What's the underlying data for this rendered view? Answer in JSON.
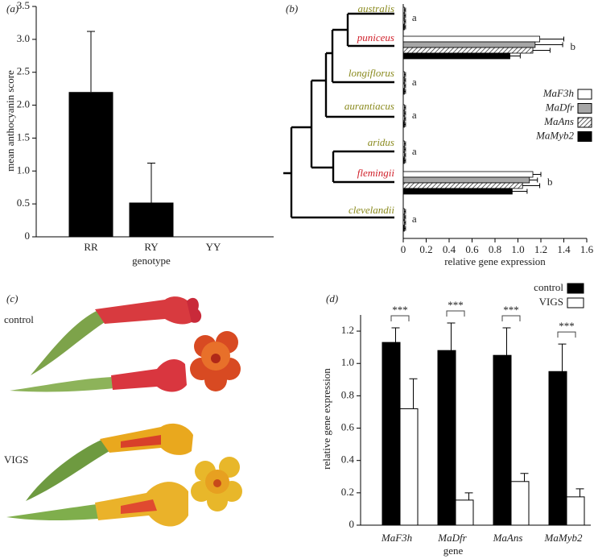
{
  "chart_data": [
    {
      "type": "bar",
      "panel_label": "(a)",
      "y_label": "mean anthocyanin score",
      "x_label": "genotype",
      "categories": [
        "RR",
        "RY",
        "YY"
      ],
      "values": [
        2.2,
        0.52,
        0
      ],
      "errors": [
        0.92,
        0.6,
        0
      ],
      "color": "#000000",
      "ylim": [
        0,
        3.5
      ],
      "yticks": [
        0,
        0.5,
        {
          "value": 1,
          "label": "1.0"
        },
        1.5,
        {
          "value": 2,
          "label": "2.0"
        },
        2.5,
        {
          "value": 3,
          "label": "3.0"
        },
        3.5
      ]
    },
    {
      "type": "hbar",
      "panel_label": "(b)",
      "x_label": "relative gene expression",
      "categories": [
        "australis",
        "puniceus",
        "longiflorus",
        "aurantiacus",
        "aridus",
        "flemingii",
        "clevelandii"
      ],
      "category_colors": [
        "#8a8a1e",
        "#d0202a",
        "#8a8a1e",
        "#8a8a1e",
        "#8a8a1e",
        "#d0202a",
        "#8a8a1e"
      ],
      "letters": [
        "a",
        "b",
        "a",
        "a",
        "a",
        "b",
        "a"
      ],
      "series": [
        {
          "name": "MaF3h",
          "color": "#ffffff",
          "values": [
            0.01,
            1.19,
            0.01,
            0.01,
            0.01,
            1.13,
            0.01
          ],
          "errors": [
            0.01,
            0.21,
            0.01,
            0.01,
            0.01,
            0.07,
            0.01
          ]
        },
        {
          "name": "MaDfr",
          "color": "#a6a6a6",
          "values": [
            0.01,
            1.15,
            0.01,
            0.01,
            0.01,
            1.1,
            0.01
          ],
          "errors": [
            0.01,
            0.24,
            0.01,
            0.01,
            0.01,
            0.07,
            0.01
          ]
        },
        {
          "name": "MaAns",
          "color": "#ffffff",
          "hatch": true,
          "values": [
            0.01,
            1.13,
            0.01,
            0.01,
            0.01,
            1.04,
            0.01
          ],
          "errors": [
            0.01,
            0.15,
            0.01,
            0.01,
            0.01,
            0.15,
            0.01
          ]
        },
        {
          "name": "MaMyb2",
          "color": "#000000",
          "values": [
            0.01,
            0.93,
            0.01,
            0.01,
            0.01,
            0.95,
            0.01
          ],
          "errors": [
            0.01,
            0.09,
            0.01,
            0.01,
            0.01,
            0.13,
            0.01
          ]
        }
      ],
      "xlim": [
        0,
        1.6
      ],
      "xticks": [
        0,
        0.2,
        0.4,
        0.6,
        0.8,
        {
          "value": 1,
          "label": "1.0"
        },
        1.2,
        1.4,
        1.6
      ]
    },
    {
      "type": "grouped_bar",
      "panel_label": "(d)",
      "y_label": "relative gene expression",
      "x_label": "gene",
      "categories": [
        "MaF3h",
        "MaDfr",
        "MaAns",
        "MaMyb2"
      ],
      "series": [
        {
          "name": "control",
          "color": "#000000",
          "values": [
            1.13,
            1.08,
            1.05,
            0.95
          ],
          "errors": [
            0.09,
            0.17,
            0.17,
            0.17
          ]
        },
        {
          "name": "VIGS",
          "color": "#ffffff",
          "values": [
            0.72,
            0.155,
            0.27,
            0.175
          ],
          "errors": [
            0.185,
            0.045,
            0.05,
            0.05
          ]
        }
      ],
      "significance": [
        "***",
        "***",
        "***",
        "***"
      ],
      "ylim": [
        0,
        1.3
      ],
      "yticks": [
        0,
        0.2,
        0.4,
        0.6,
        0.8,
        {
          "value": 1,
          "label": "1.0"
        },
        1.2
      ]
    }
  ],
  "photos": {
    "panel_label": "(c)",
    "labels": [
      "control",
      "VIGS"
    ]
  }
}
